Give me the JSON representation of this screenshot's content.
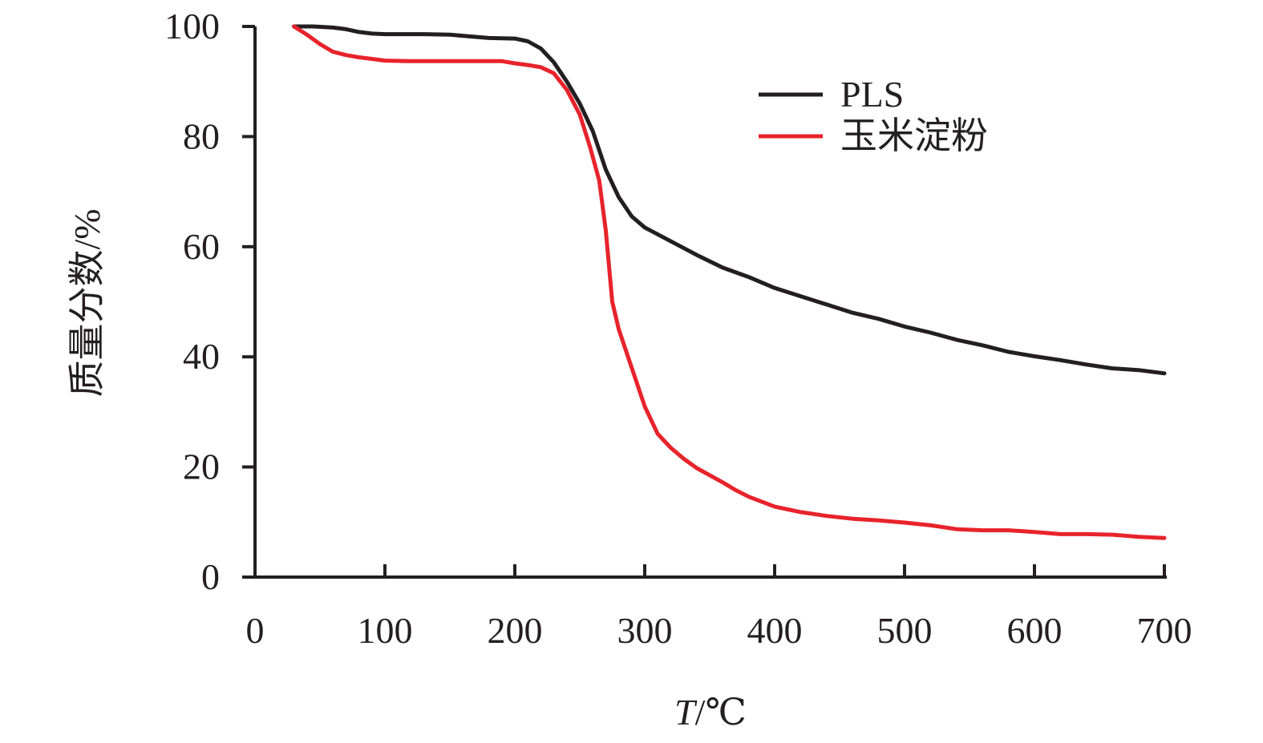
{
  "chart_data": {
    "type": "line",
    "xlabel": "T/℃",
    "xlabel_italic": "T",
    "xlabel_unit": "/℃",
    "ylabel": "质量分数/%",
    "xlim": [
      0,
      700
    ],
    "ylim": [
      0,
      100
    ],
    "xticks": [
      0,
      100,
      200,
      300,
      400,
      500,
      600,
      700
    ],
    "yticks": [
      0,
      20,
      40,
      60,
      80,
      100
    ],
    "grid": false,
    "legend_position": "top-right",
    "series": [
      {
        "name": "PLS",
        "color": "#231f20",
        "points": [
          [
            30,
            100
          ],
          [
            45,
            100
          ],
          [
            60,
            99.8
          ],
          [
            70,
            99.5
          ],
          [
            80,
            99
          ],
          [
            90,
            98.7
          ],
          [
            100,
            98.6
          ],
          [
            130,
            98.6
          ],
          [
            150,
            98.5
          ],
          [
            165,
            98.2
          ],
          [
            180,
            97.9
          ],
          [
            200,
            97.8
          ],
          [
            210,
            97.3
          ],
          [
            220,
            96
          ],
          [
            230,
            93.5
          ],
          [
            240,
            90
          ],
          [
            250,
            86
          ],
          [
            260,
            81
          ],
          [
            270,
            74
          ],
          [
            280,
            69
          ],
          [
            290,
            65.5
          ],
          [
            300,
            63.5
          ],
          [
            320,
            61
          ],
          [
            340,
            58.5
          ],
          [
            360,
            56.2
          ],
          [
            380,
            54.5
          ],
          [
            400,
            52.5
          ],
          [
            420,
            51
          ],
          [
            440,
            49.5
          ],
          [
            460,
            48
          ],
          [
            480,
            46.9
          ],
          [
            500,
            45.5
          ],
          [
            520,
            44.4
          ],
          [
            540,
            43.1
          ],
          [
            560,
            42.1
          ],
          [
            580,
            40.9
          ],
          [
            600,
            40.1
          ],
          [
            620,
            39.4
          ],
          [
            640,
            38.6
          ],
          [
            660,
            37.9
          ],
          [
            680,
            37.6
          ],
          [
            700,
            37
          ]
        ]
      },
      {
        "name": "玉米淀粉",
        "color": "#e8232b",
        "points": [
          [
            30,
            100
          ],
          [
            40,
            98.5
          ],
          [
            50,
            96.8
          ],
          [
            60,
            95.4
          ],
          [
            70,
            94.8
          ],
          [
            80,
            94.4
          ],
          [
            90,
            94.1
          ],
          [
            100,
            93.8
          ],
          [
            120,
            93.7
          ],
          [
            150,
            93.7
          ],
          [
            180,
            93.7
          ],
          [
            190,
            93.7
          ],
          [
            200,
            93.3
          ],
          [
            210,
            93
          ],
          [
            220,
            92.6
          ],
          [
            230,
            91.5
          ],
          [
            240,
            88.5
          ],
          [
            250,
            84
          ],
          [
            258,
            78
          ],
          [
            265,
            72
          ],
          [
            270,
            63
          ],
          [
            275,
            50
          ],
          [
            280,
            45
          ],
          [
            290,
            38
          ],
          [
            300,
            31
          ],
          [
            310,
            26
          ],
          [
            320,
            23.5
          ],
          [
            330,
            21.5
          ],
          [
            340,
            19.8
          ],
          [
            360,
            17.2
          ],
          [
            370,
            15.8
          ],
          [
            380,
            14.6
          ],
          [
            400,
            12.8
          ],
          [
            420,
            11.8
          ],
          [
            440,
            11.1
          ],
          [
            460,
            10.6
          ],
          [
            480,
            10.3
          ],
          [
            500,
            9.9
          ],
          [
            520,
            9.4
          ],
          [
            540,
            8.7
          ],
          [
            560,
            8.5
          ],
          [
            580,
            8.5
          ],
          [
            600,
            8.2
          ],
          [
            620,
            7.8
          ],
          [
            640,
            7.8
          ],
          [
            660,
            7.7
          ],
          [
            680,
            7.3
          ],
          [
            700,
            7.1
          ]
        ]
      }
    ]
  }
}
